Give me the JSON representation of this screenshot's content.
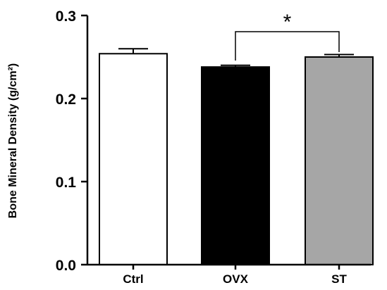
{
  "chart_data": {
    "type": "bar",
    "title": "",
    "xlabel": "",
    "ylabel": "Bone Mineral Density (g/cm²)",
    "categories": [
      "Ctrl",
      "OVX",
      "ST"
    ],
    "values": [
      0.254,
      0.238,
      0.25
    ],
    "errors": [
      0.006,
      0.002,
      0.003
    ],
    "bar_colors": [
      "#ffffff",
      "#000000",
      "#a6a6a6"
    ],
    "bar_edge_color": "#000000",
    "ylim": [
      0.0,
      0.3
    ],
    "yticks": [
      "0.0",
      "0.1",
      "0.2",
      "0.3"
    ],
    "ytick_values": [
      0.0,
      0.1,
      0.2,
      0.3
    ],
    "grid": false,
    "legend": "none",
    "significance": [
      {
        "from": "OVX",
        "to": "ST",
        "label": "*"
      }
    ]
  }
}
